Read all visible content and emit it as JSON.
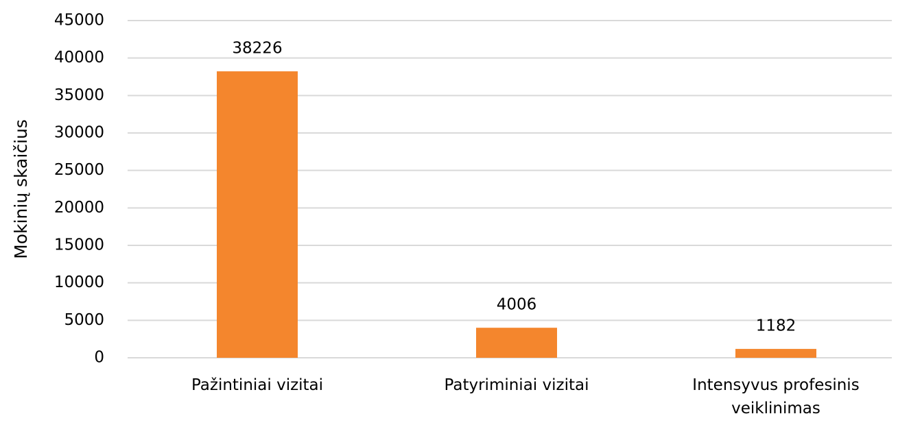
{
  "chart_data": {
    "type": "bar",
    "y_label": "Mokinių skaičius",
    "categories": [
      "Pažintiniai vizitai",
      "Patyriminiai vizitai",
      "Intensyvus profesinis veiklinimas"
    ],
    "values": [
      38226,
      4006,
      1182
    ],
    "color": "#f4862d",
    "ylim": [
      0,
      45000
    ],
    "yticks": [
      0,
      5000,
      10000,
      15000,
      20000,
      25000,
      30000,
      35000,
      40000,
      45000
    ],
    "grid": true
  }
}
